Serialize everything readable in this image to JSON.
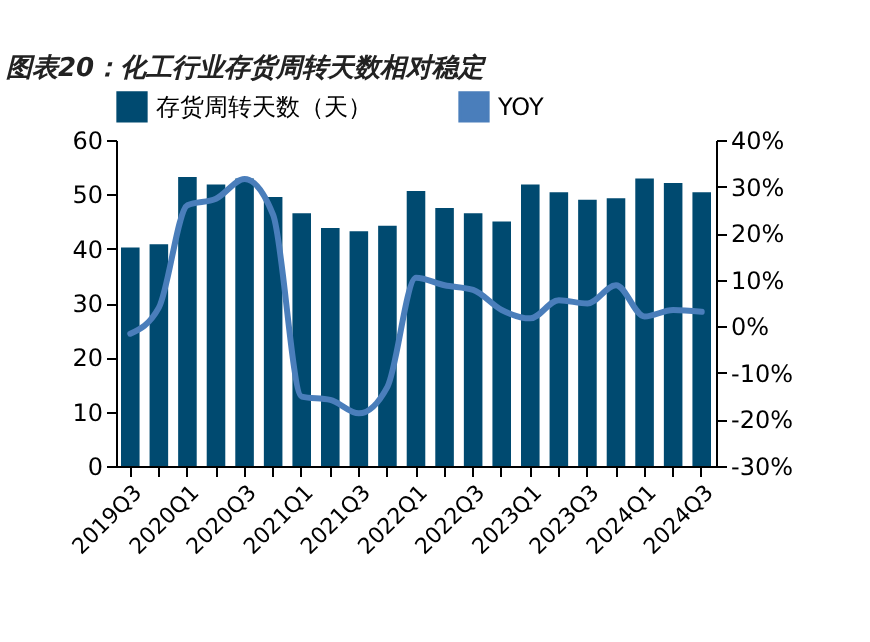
{
  "chart_data": {
    "type": "bar",
    "title": "图表20：化工行业存货周转天数相对稳定",
    "categories": [
      "2019Q3",
      null,
      "2020Q1",
      null,
      "2020Q3",
      null,
      "2021Q1",
      null,
      "2021Q3",
      null,
      "2022Q1",
      null,
      "2022Q3",
      null,
      "2023Q1",
      null,
      "2023Q3",
      null,
      "2024Q1",
      null,
      "2024Q3"
    ],
    "series": [
      {
        "name": "存货周转天数（天）",
        "color": "#004a70",
        "values": [
          40.2,
          40.8,
          53.2,
          51.8,
          52.9,
          49.5,
          46.5,
          43.8,
          43.2,
          44.2,
          50.6,
          47.5,
          46.5,
          45.0,
          51.8,
          50.4,
          49.0,
          49.3,
          52.9,
          52.1,
          50.4
        ]
      },
      {
        "name": "YOY",
        "type": "line",
        "axis": "y2",
        "color": "#4a7ebb",
        "values": [
          -1.6,
          4.0,
          26.0,
          27.4,
          31.6,
          23.9,
          -15.1,
          -15.8,
          -18.7,
          -13.0,
          10.4,
          8.8,
          7.8,
          3.5,
          1.7,
          5.6,
          4.9,
          8.8,
          2.1,
          3.5,
          3.1
        ]
      }
    ],
    "ylim": [
      0,
      60
    ],
    "yticks": [
      0,
      10,
      20,
      30,
      40,
      50,
      60
    ],
    "y2lim": [
      -30,
      40
    ],
    "y2ticks": [
      {
        "value": -30,
        "label": "-30%"
      },
      {
        "value": -20,
        "label": "-20%"
      },
      {
        "value": -10,
        "label": "-10%"
      },
      {
        "value": 0,
        "label": "0%"
      },
      {
        "value": 10,
        "label": "10%"
      },
      {
        "value": 20,
        "label": "20%"
      },
      {
        "value": 30,
        "label": "30%"
      },
      {
        "value": 40,
        "label": "40%"
      }
    ],
    "grid": false,
    "legend": "top",
    "marker": "none",
    "line_style": "solid"
  }
}
